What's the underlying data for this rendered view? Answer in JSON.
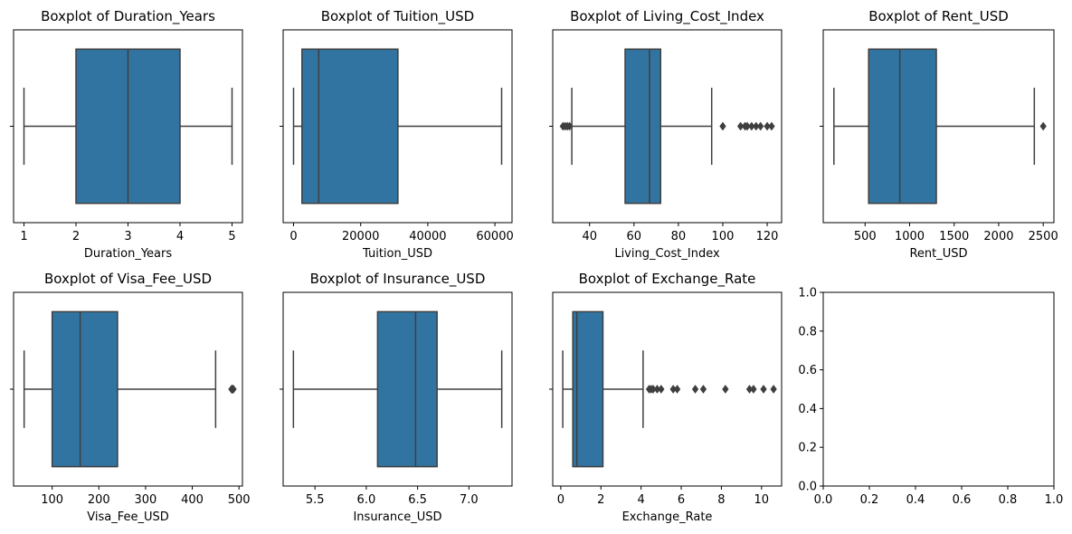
{
  "chart_data": [
    {
      "type": "boxplot",
      "title": "Boxplot of Duration_Years",
      "xlabel": "Duration_Years",
      "xlim": [
        0.8,
        5.2
      ],
      "xticks": [
        1,
        2,
        3,
        4,
        5
      ],
      "xtick_labels": [
        "1",
        "2",
        "3",
        "4",
        "5"
      ],
      "color": "#3274a1",
      "box": {
        "whisker_low": 1,
        "q1": 2,
        "median": 3,
        "q3": 4,
        "whisker_high": 5
      },
      "outliers": []
    },
    {
      "type": "boxplot",
      "title": "Boxplot of Tuition_USD",
      "xlabel": "Tuition_USD",
      "xlim": [
        -3100,
        65100
      ],
      "xticks": [
        0,
        20000,
        40000,
        60000
      ],
      "xtick_labels": [
        "0",
        "20000",
        "40000",
        "60000"
      ],
      "color": "#3274a1",
      "box": {
        "whisker_low": 0,
        "q1": 2500,
        "median": 7500,
        "q3": 31100,
        "whisker_high": 62000
      },
      "outliers": []
    },
    {
      "type": "boxplot",
      "title": "Boxplot of Living_Cost_Index",
      "xlabel": "Living_Cost_Index",
      "xlim": [
        23.4,
        126.5
      ],
      "xticks": [
        40,
        60,
        80,
        100,
        120
      ],
      "xtick_labels": [
        "40",
        "60",
        "80",
        "100",
        "120"
      ],
      "color": "#3274a1",
      "box": {
        "whisker_low": 32,
        "q1": 56,
        "median": 67,
        "q3": 72,
        "whisker_high": 95
      },
      "outliers": [
        28,
        29,
        30,
        31,
        100,
        108,
        110,
        111,
        113,
        115,
        117,
        120,
        122
      ]
    },
    {
      "type": "boxplot",
      "title": "Boxplot of Rent_USD",
      "xlabel": "Rent_USD",
      "xlim": [
        30,
        2620
      ],
      "xticks": [
        500,
        1000,
        1500,
        2000,
        2500
      ],
      "xtick_labels": [
        "500",
        "1000",
        "1500",
        "2000",
        "2500"
      ],
      "color": "#3274a1",
      "box": {
        "whisker_low": 150,
        "q1": 540,
        "median": 890,
        "q3": 1300,
        "whisker_high": 2400
      },
      "outliers": [
        2500
      ]
    },
    {
      "type": "boxplot",
      "title": "Boxplot of Visa_Fee_USD",
      "xlabel": "Visa_Fee_USD",
      "xlim": [
        17.4,
        507.4
      ],
      "xticks": [
        100,
        200,
        300,
        400,
        500
      ],
      "xtick_labels": [
        "100",
        "200",
        "300",
        "400",
        "500"
      ],
      "color": "#3274a1",
      "box": {
        "whisker_low": 40,
        "q1": 100,
        "median": 160,
        "q3": 240,
        "whisker_high": 450
      },
      "outliers": [
        484,
        485,
        486,
        487,
        488
      ]
    },
    {
      "type": "boxplot",
      "title": "Boxplot of Insurance_USD",
      "xlabel": "Insurance_USD",
      "xlim": [
        5.19,
        7.42
      ],
      "xticks": [
        5.5,
        6.0,
        6.5,
        7.0
      ],
      "xtick_labels": [
        "5.5",
        "6.0",
        "6.5",
        "7.0"
      ],
      "color": "#3274a1",
      "box": {
        "whisker_low": 5.29,
        "q1": 6.11,
        "median": 6.48,
        "q3": 6.69,
        "whisker_high": 7.32
      },
      "outliers": []
    },
    {
      "type": "boxplot",
      "title": "Boxplot of Exchange_Rate",
      "xlabel": "Exchange_Rate",
      "xlim": [
        -0.4,
        11.0
      ],
      "xticks": [
        0,
        2,
        4,
        6,
        8,
        10
      ],
      "xtick_labels": [
        "0",
        "2",
        "4",
        "6",
        "8",
        "10"
      ],
      "color": "#3274a1",
      "box": {
        "whisker_low": 0.1,
        "q1": 0.6,
        "median": 0.8,
        "q3": 2.1,
        "whisker_high": 4.1
      },
      "outliers": [
        4.4,
        4.5,
        4.6,
        4.8,
        5.0,
        5.6,
        5.8,
        6.7,
        7.1,
        8.2,
        9.4,
        9.6,
        10.1,
        10.6
      ]
    },
    {
      "type": "empty",
      "title": "",
      "xlabel": "",
      "xlim": [
        0,
        1
      ],
      "ylim": [
        0,
        1
      ],
      "xticks": [
        0,
        0.2,
        0.4,
        0.6,
        0.8,
        1.0
      ],
      "xtick_labels": [
        "0.0",
        "0.2",
        "0.4",
        "0.6",
        "0.8",
        "1.0"
      ],
      "yticks": [
        0,
        0.2,
        0.4,
        0.6,
        0.8,
        1.0
      ],
      "ytick_labels": [
        "0.0",
        "0.2",
        "0.4",
        "0.6",
        "0.8",
        "1.0"
      ]
    }
  ]
}
